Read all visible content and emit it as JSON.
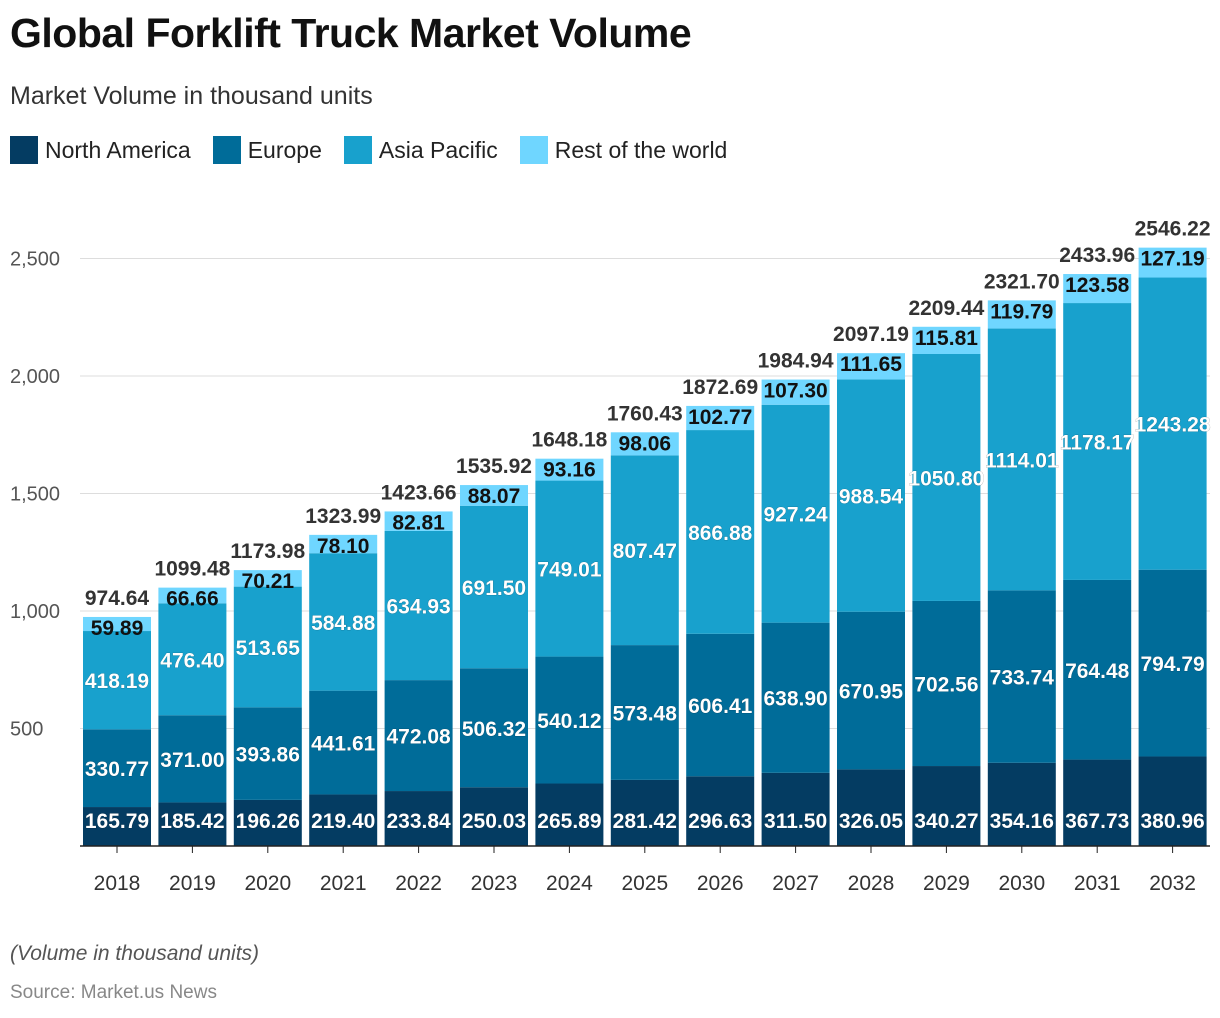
{
  "title": "Global Forklift Truck Market Volume",
  "subtitle": "Market Volume in thousand units",
  "footnote": "(Volume in thousand units)",
  "source": "Source: Market.us News",
  "colors": {
    "north_america": "#043c62",
    "europe": "#006c99",
    "asia_pacific": "#18a1cd",
    "rest_of_world": "#6fd6ff",
    "grid": "#dddddd",
    "axis": "#222222"
  },
  "chart_data": {
    "type": "bar",
    "stacked": true,
    "categories": [
      "2018",
      "2019",
      "2020",
      "2021",
      "2022",
      "2023",
      "2024",
      "2025",
      "2026",
      "2027",
      "2028",
      "2029",
      "2030",
      "2031",
      "2032"
    ],
    "series": [
      {
        "name": "North America",
        "color_key": "north_america",
        "values": [
          165.79,
          185.42,
          196.26,
          219.4,
          233.84,
          250.03,
          265.89,
          281.42,
          296.63,
          311.5,
          326.05,
          340.27,
          354.16,
          367.73,
          380.96
        ]
      },
      {
        "name": "Europe",
        "color_key": "europe",
        "values": [
          330.77,
          371.0,
          393.86,
          441.61,
          472.08,
          506.32,
          540.12,
          573.48,
          606.41,
          638.9,
          670.95,
          702.56,
          733.74,
          764.48,
          794.79
        ]
      },
      {
        "name": "Asia Pacific",
        "color_key": "asia_pacific",
        "values": [
          418.19,
          476.4,
          513.65,
          584.88,
          634.93,
          691.5,
          749.01,
          807.47,
          866.88,
          927.24,
          988.54,
          1050.8,
          1114.01,
          1178.17,
          1243.28
        ]
      },
      {
        "name": "Rest of the world",
        "color_key": "rest_of_world",
        "values": [
          59.89,
          66.66,
          70.21,
          78.1,
          82.81,
          88.07,
          93.16,
          98.06,
          102.77,
          107.3,
          111.65,
          115.81,
          119.79,
          123.58,
          127.19
        ]
      }
    ],
    "totals": [
      974.64,
      1099.48,
      1173.98,
      1323.99,
      1423.66,
      1535.92,
      1648.18,
      1760.43,
      1872.69,
      1984.94,
      2097.19,
      2209.44,
      2321.7,
      2433.96,
      2546.22
    ],
    "yticks": [
      500,
      1000,
      1500,
      2000,
      2500
    ],
    "ytick_labels": [
      "500",
      "1,000",
      "1,500",
      "2,000",
      "2,500"
    ],
    "ylim": [
      0,
      2546.22
    ],
    "grid": true,
    "legend_position": "top-left"
  }
}
